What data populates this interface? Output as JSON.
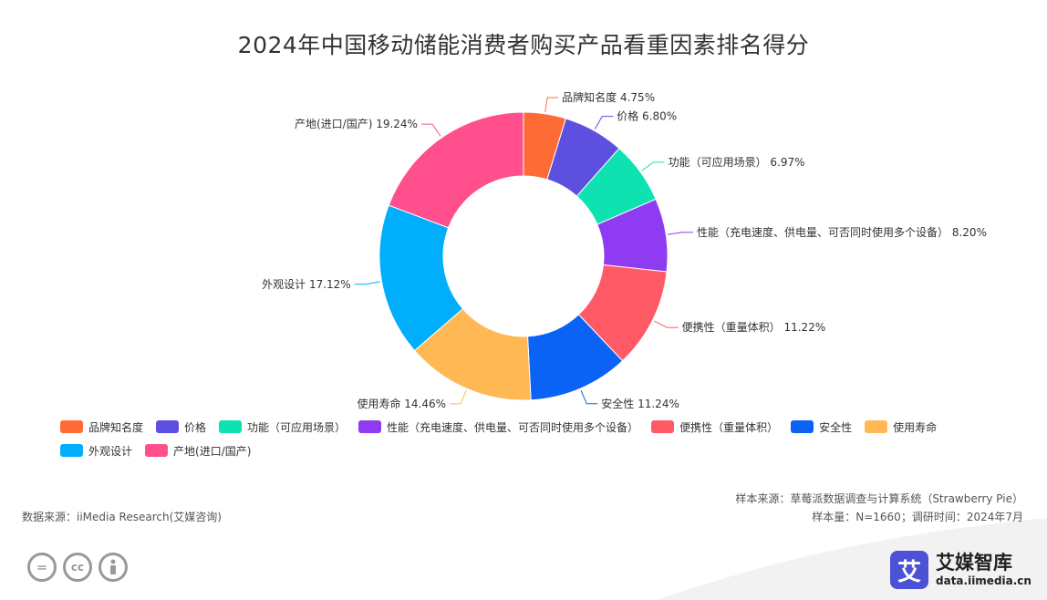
{
  "chart_data": {
    "type": "pie",
    "title": "2024年中国移动储能消费者购买产品看重因素排名得分",
    "slices": [
      {
        "label": "品牌知名度",
        "value": 4.75,
        "color": "#ff6b35",
        "data_label": "品牌知名度 4.75%"
      },
      {
        "label": "价格",
        "value": 6.8,
        "color": "#5d4fe0",
        "data_label": "价格 6.80%"
      },
      {
        "label": "功能（可应用场景）",
        "value": 6.97,
        "color": "#0ee2b0",
        "data_label": "功能（可应用场景） 6.97%"
      },
      {
        "label": "性能（充电速度、供电量、可否同时使用多个设备）",
        "value": 8.2,
        "color": "#8e3bf2",
        "data_label": "性能（充电速度、供电量、可否同时使用多个设备） 8.20%"
      },
      {
        "label": "便携性（重量体积）",
        "value": 11.22,
        "color": "#ff5a66",
        "data_label": "便携性（重量体积） 11.22%"
      },
      {
        "label": "安全性",
        "value": 11.24,
        "color": "#0a63f5",
        "data_label": "安全性 11.24%"
      },
      {
        "label": "使用寿命",
        "value": 14.46,
        "color": "#ffb854",
        "data_label": "使用寿命 14.46%"
      },
      {
        "label": "外观设计",
        "value": 17.12,
        "color": "#00aefc",
        "data_label": "外观设计 17.12%"
      },
      {
        "label": "产地(进口/国产)",
        "value": 19.24,
        "color": "#ff4f8d",
        "data_label": "产地(进口/国产) 19.24%"
      }
    ],
    "legend_position": "bottom-left"
  },
  "source_left": "数据来源：iiMedia Research(艾媒咨询)",
  "source_right_1": "样本来源：草莓派数据调查与计算系统（Strawberry Pie）",
  "source_right_2": "样本量：N=1660；调研时间：2024年7月",
  "brand": {
    "logo_char": "艾",
    "name": "艾媒智库",
    "url": "data.iimedia.cn"
  },
  "license_icons": [
    "equals-icon",
    "cc-icon",
    "person-icon"
  ]
}
